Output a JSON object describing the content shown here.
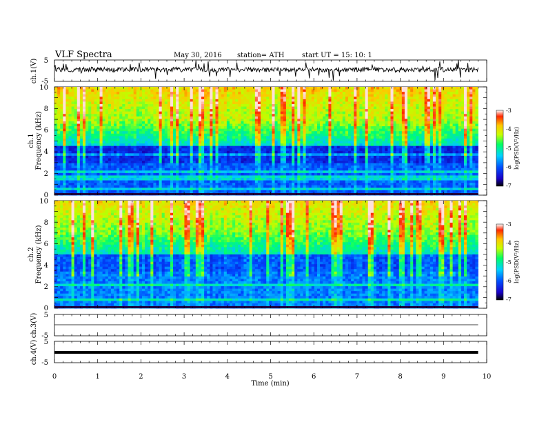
{
  "header": {
    "title": "VLF  Spectra",
    "date": "May 30, 2016",
    "station": "station= ATH",
    "start": "start  UT  =    15: 10: 1"
  },
  "chart_data": {
    "type": "heatmap",
    "xlabel": "Time  (min)",
    "xlim": [
      0,
      10
    ],
    "xticks": [
      "0",
      "1",
      "2",
      "3",
      "4",
      "5",
      "6",
      "7",
      "8",
      "9",
      "10"
    ],
    "data_end_min": 9.8,
    "panels": [
      {
        "id": "ch1-wave",
        "type": "line",
        "ylabel": "ch.1(V)",
        "ylim": [
          -5,
          5
        ],
        "yticks": [
          "5",
          "-5"
        ]
      },
      {
        "id": "ch1-spec",
        "type": "heatmap",
        "ylabel_top": "ch.1",
        "ylabel": "Frequency  (kHz)",
        "ylim": [
          0,
          10
        ],
        "yticks": [
          "0",
          "2",
          "4",
          "6",
          "8",
          "10"
        ]
      },
      {
        "id": "ch2-spec",
        "type": "heatmap",
        "ylabel_top": "ch.2",
        "ylabel": "Frequency  (kHz)",
        "ylim": [
          0,
          10
        ],
        "yticks": [
          "0",
          "2",
          "4",
          "6",
          "8",
          "10"
        ]
      },
      {
        "id": "ch3-wave",
        "type": "line",
        "ylabel": "ch.3(V)",
        "ylim": [
          -5,
          5
        ],
        "yticks": [
          "5",
          "-5"
        ]
      },
      {
        "id": "ch4-wave",
        "type": "line",
        "ylabel": "ch.4(V)",
        "ylim": [
          -5,
          5
        ],
        "yticks": [
          "5",
          "-5"
        ]
      }
    ],
    "colorbar": {
      "label": "log(PSD(V²/Hz)",
      "range": [
        -7,
        -3
      ],
      "ticks": [
        "-3",
        "-4",
        "-5",
        "-6",
        "-7"
      ],
      "colormap": [
        "#000000",
        "#1a00c8",
        "#0050ff",
        "#00d2ff",
        "#00ff64",
        "#c8ff00",
        "#ffc800",
        "#ff2800",
        "#ffffff"
      ]
    }
  }
}
